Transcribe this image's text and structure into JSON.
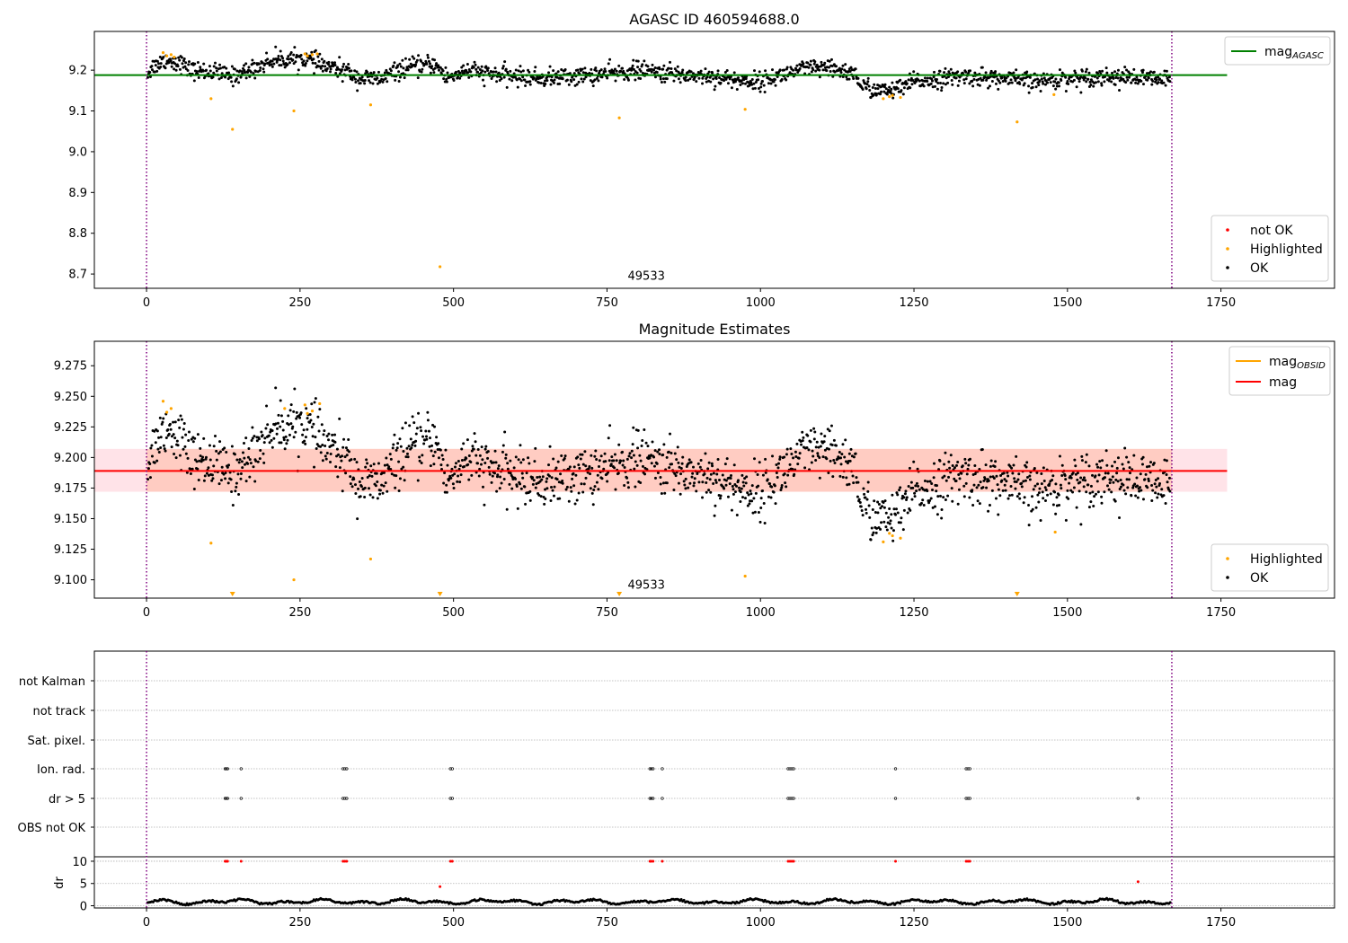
{
  "chart_data": [
    {
      "type": "scatter",
      "title": "AGASC ID 460594688.0",
      "xlim": [
        -85,
        1935
      ],
      "ylim": [
        8.665,
        9.295
      ],
      "xticks": [
        0,
        250,
        500,
        750,
        1000,
        1250,
        1500,
        1750
      ],
      "yticks": [
        8.7,
        8.8,
        8.9,
        9.0,
        9.1,
        9.2
      ],
      "ytick_labels": [
        "8.7",
        "8.8",
        "8.9",
        "9.0",
        "9.1",
        "9.2"
      ],
      "vlines": [
        0,
        1670
      ],
      "mag_agasc": 9.188,
      "hline_x": [
        -85,
        1760
      ],
      "annotation": {
        "text": "49533",
        "x": 835,
        "y": 8.69
      },
      "legend_top": [
        {
          "label": "mag",
          "sub": "AGASC",
          "color": "#008000"
        }
      ],
      "legend_bottom": [
        {
          "label": "not OK",
          "color": "#ff0000"
        },
        {
          "label": "Highlighted",
          "color": "#ffa500"
        },
        {
          "label": "OK",
          "color": "#000000"
        }
      ],
      "highlighted_points": [
        [
          27,
          9.243
        ],
        [
          33,
          9.235
        ],
        [
          40,
          9.238
        ],
        [
          45,
          9.232
        ],
        [
          105,
          9.13
        ],
        [
          140,
          9.055
        ],
        [
          240,
          9.1
        ],
        [
          258,
          9.24
        ],
        [
          262,
          9.235
        ],
        [
          270,
          9.238
        ],
        [
          278,
          9.24
        ],
        [
          365,
          9.115
        ],
        [
          478,
          8.718
        ],
        [
          770,
          9.083
        ],
        [
          975,
          9.104
        ],
        [
          1200,
          9.13
        ],
        [
          1210,
          9.135
        ],
        [
          1215,
          9.138
        ],
        [
          1228,
          9.133
        ],
        [
          1418,
          9.073
        ],
        [
          1478,
          9.14
        ]
      ],
      "ok_model": {
        "x_start": 2,
        "x_end": 1668,
        "step": 1.05,
        "noise": 0.011,
        "segments": [
          [
            0,
            9.19
          ],
          [
            10,
            9.208
          ],
          [
            30,
            9.225
          ],
          [
            55,
            9.218
          ],
          [
            70,
            9.2
          ],
          [
            110,
            9.195
          ],
          [
            140,
            9.185
          ],
          [
            175,
            9.205
          ],
          [
            205,
            9.225
          ],
          [
            260,
            9.228
          ],
          [
            290,
            9.21
          ],
          [
            330,
            9.195
          ],
          [
            345,
            9.18
          ],
          [
            380,
            9.178
          ],
          [
            420,
            9.205
          ],
          [
            470,
            9.215
          ],
          [
            490,
            9.18
          ],
          [
            520,
            9.2
          ],
          [
            560,
            9.19
          ],
          [
            600,
            9.185
          ],
          [
            640,
            9.18
          ],
          [
            700,
            9.185
          ],
          [
            760,
            9.192
          ],
          [
            800,
            9.2
          ],
          [
            860,
            9.19
          ],
          [
            920,
            9.185
          ],
          [
            960,
            9.175
          ],
          [
            1000,
            9.172
          ],
          [
            1050,
            9.195
          ],
          [
            1080,
            9.205
          ],
          [
            1130,
            9.2
          ],
          [
            1155,
            9.19
          ],
          [
            1165,
            9.16
          ],
          [
            1200,
            9.148
          ],
          [
            1230,
            9.155
          ],
          [
            1250,
            9.172
          ],
          [
            1300,
            9.18
          ],
          [
            1340,
            9.185
          ],
          [
            1400,
            9.178
          ],
          [
            1450,
            9.172
          ],
          [
            1500,
            9.18
          ],
          [
            1560,
            9.185
          ],
          [
            1620,
            9.18
          ],
          [
            1668,
            9.175
          ]
        ]
      }
    },
    {
      "type": "scatter",
      "title": "Magnitude Estimates",
      "xlim": [
        -85,
        1935
      ],
      "ylim": [
        9.085,
        9.295
      ],
      "xticks": [
        0,
        250,
        500,
        750,
        1000,
        1250,
        1500,
        1750
      ],
      "yticks": [
        9.1,
        9.125,
        9.15,
        9.175,
        9.2,
        9.225,
        9.25,
        9.275
      ],
      "ytick_labels": [
        "9.100",
        "9.125",
        "9.150",
        "9.175",
        "9.200",
        "9.225",
        "9.250",
        "9.275"
      ],
      "vlines": [
        0,
        1670
      ],
      "mag": 9.189,
      "mag_band": [
        9.172,
        9.207
      ],
      "band_inner_x": [
        0,
        1670
      ],
      "hline_x": [
        -85,
        1760
      ],
      "annotation": {
        "text": "49533",
        "x": 835,
        "y": 9.094
      },
      "legend_top": [
        {
          "label": "mag",
          "sub": "OBSID",
          "color": "#ffa500"
        },
        {
          "label": "mag",
          "sub": "",
          "color": "#ff0000"
        }
      ],
      "legend_bottom": [
        {
          "label": "Highlighted",
          "color": "#ffa500"
        },
        {
          "label": "OK",
          "color": "#000000"
        }
      ],
      "highlighted_points": [
        [
          27,
          9.246
        ],
        [
          33,
          9.237
        ],
        [
          40,
          9.24
        ],
        [
          105,
          9.13
        ],
        [
          225,
          9.24
        ],
        [
          240,
          9.1
        ],
        [
          258,
          9.243
        ],
        [
          262,
          9.236
        ],
        [
          270,
          9.238
        ],
        [
          282,
          9.244
        ],
        [
          365,
          9.117
        ],
        [
          975,
          9.103
        ],
        [
          1200,
          9.131
        ],
        [
          1210,
          9.138
        ],
        [
          1215,
          9.136
        ],
        [
          1228,
          9.134
        ],
        [
          1480,
          9.139
        ]
      ],
      "clipped_markers_x": [
        140,
        478,
        770,
        1418
      ],
      "ok_model_ref": 0
    },
    {
      "type": "scatter",
      "title": "",
      "xlim": [
        -85,
        1935
      ],
      "xticks": [
        0,
        250,
        500,
        750,
        1000,
        1250,
        1500,
        1750
      ],
      "vlines": [
        0,
        1670
      ],
      "categories": [
        "not Kalman",
        "not track",
        "Sat. pixel.",
        "Ion. rad.",
        "dr > 5",
        "OBS not OK"
      ],
      "flag_points": {
        "Ion. rad.": [
          128,
          130,
          132,
          154,
          320,
          323,
          326,
          495,
          498,
          820,
          822,
          825,
          840,
          1045,
          1048,
          1051,
          1054,
          1220,
          1335,
          1338,
          1341
        ],
        "dr > 5": [
          128,
          130,
          132,
          154,
          320,
          323,
          326,
          495,
          498,
          820,
          822,
          825,
          840,
          1045,
          1048,
          1051,
          1054,
          1220,
          1335,
          1338,
          1341,
          1615
        ]
      },
      "dr_ylabel": "dr",
      "dr_ylim": [
        -0.5,
        11
      ],
      "dr_yticks": [
        0,
        5,
        10
      ],
      "dr_points_red": [
        [
          128,
          10
        ],
        [
          130,
          10
        ],
        [
          132,
          10
        ],
        [
          154,
          10
        ],
        [
          320,
          10
        ],
        [
          323,
          10
        ],
        [
          326,
          10
        ],
        [
          495,
          10
        ],
        [
          498,
          10
        ],
        [
          820,
          10
        ],
        [
          822,
          10
        ],
        [
          825,
          10
        ],
        [
          840,
          10
        ],
        [
          1045,
          10
        ],
        [
          1048,
          10
        ],
        [
          1051,
          10
        ],
        [
          1054,
          10
        ],
        [
          1220,
          10
        ],
        [
          1335,
          10
        ],
        [
          1338,
          10
        ],
        [
          1341,
          10
        ],
        [
          478,
          4.3
        ],
        [
          1615,
          5.4
        ]
      ],
      "dr_ok_model": {
        "x_start": 2,
        "x_end": 1668,
        "step": 2.2,
        "base": 0.9,
        "amp": 0.6
      }
    }
  ]
}
